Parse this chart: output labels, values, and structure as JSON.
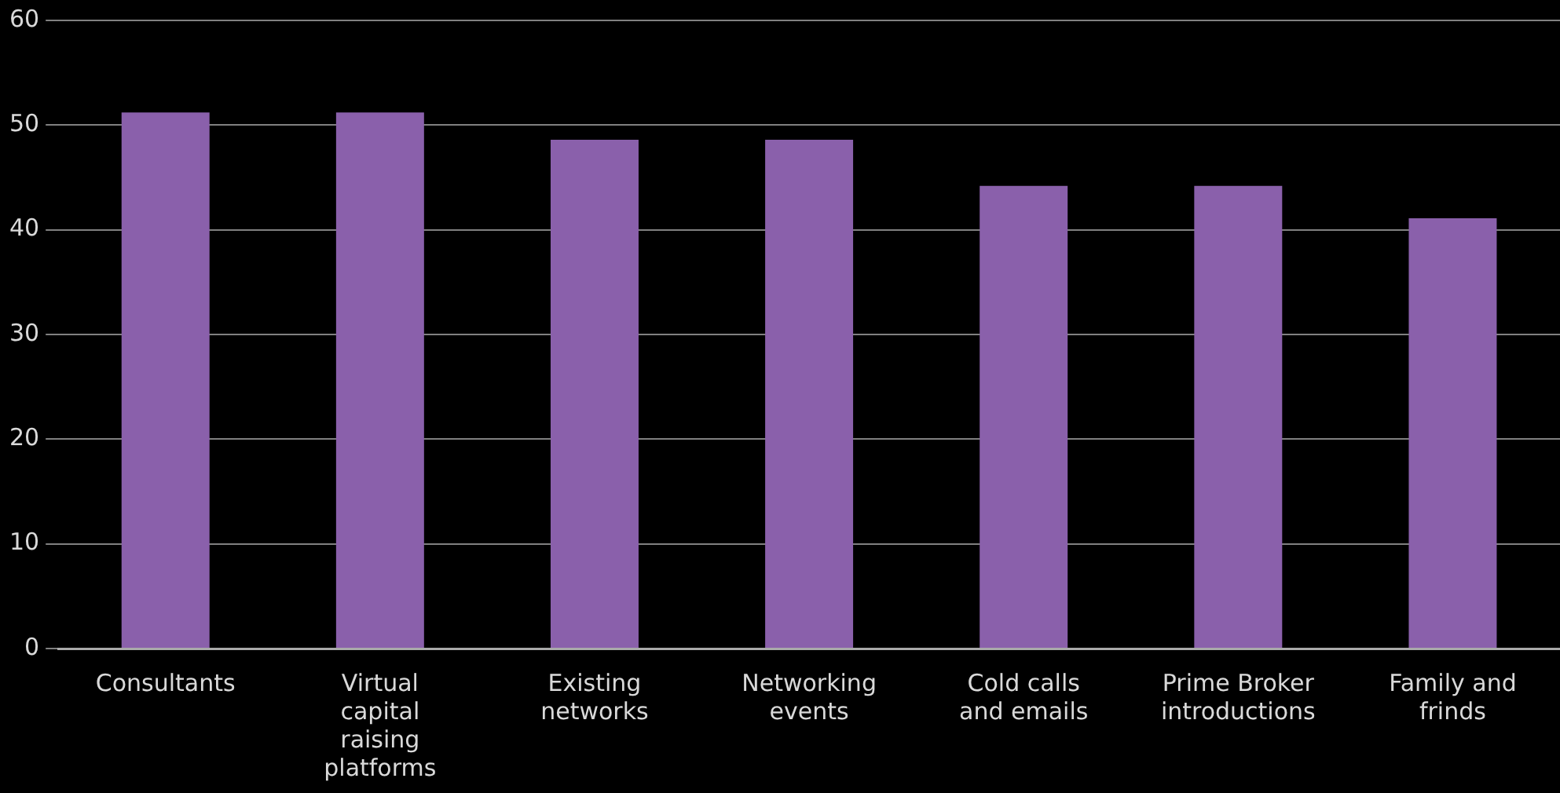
{
  "chart_data": {
    "type": "bar",
    "categories": [
      "Consultants",
      "Virtual capital raising platforms",
      "Existing networks",
      "Networking events",
      "Cold calls and emails",
      "Prime Broker introductions",
      "Family and frinds"
    ],
    "values": [
      51.2,
      51.2,
      48.6,
      48.6,
      44.2,
      44.2,
      41.1
    ],
    "color": "#8a60ab",
    "ylim": [
      0,
      60
    ],
    "yticks": [
      0,
      10,
      20,
      30,
      40,
      50,
      60
    ],
    "grid": "y",
    "legend": false
  }
}
